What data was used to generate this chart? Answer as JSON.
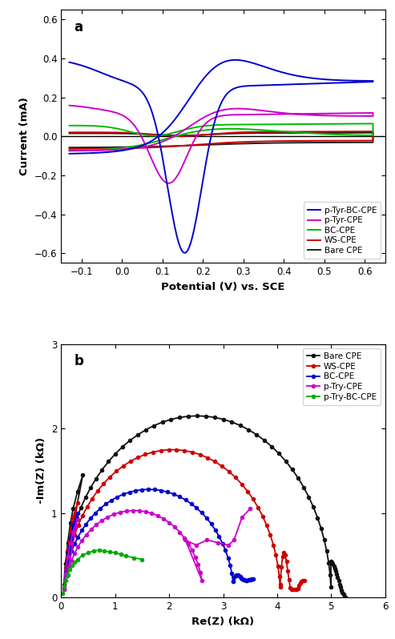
{
  "panel_a": {
    "title": "a",
    "xlabel": "Potential (V) vs. SCE",
    "ylabel": "Current (mA)",
    "xlim": [
      -0.15,
      0.65
    ],
    "ylim": [
      -0.65,
      0.65
    ],
    "xticks": [
      -0.1,
      0.0,
      0.1,
      0.2,
      0.3,
      0.4,
      0.5,
      0.6
    ],
    "yticks": [
      -0.6,
      -0.4,
      -0.2,
      0.0,
      0.2,
      0.4,
      0.6
    ],
    "curves": {
      "p-Tyr-BC-CPE": {
        "color": "#0000CC",
        "lw": 1.5
      },
      "p-Tyr-CPE": {
        "color": "#CC00CC",
        "lw": 1.5
      },
      "BC-CPE": {
        "color": "#00BB00",
        "lw": 1.5
      },
      "WS-CPE": {
        "color": "#CC0000",
        "lw": 1.5
      },
      "Bare CPE": {
        "color": "#222222",
        "lw": 1.5
      }
    }
  },
  "panel_b": {
    "title": "b",
    "xlabel": "Re(Z) (kΩ)",
    "ylabel": "-Im(Z) (kΩ)",
    "xlim": [
      0,
      6
    ],
    "ylim": [
      0,
      3
    ],
    "xticks": [
      0,
      1,
      2,
      3,
      4,
      5,
      6
    ],
    "yticks": [
      0,
      1,
      2,
      3
    ],
    "curves": {
      "Bare CPE": {
        "color": "#111111",
        "lw": 1.5,
        "ms": 4
      },
      "WS-CPE": {
        "color": "#CC0000",
        "lw": 1.5,
        "ms": 4
      },
      "BC-CPE": {
        "color": "#0000CC",
        "lw": 1.5,
        "ms": 4
      },
      "p-Try-CPE": {
        "color": "#CC00CC",
        "lw": 1.5,
        "ms": 4
      },
      "p-Try-BC-CPE": {
        "color": "#00AA00",
        "lw": 1.5,
        "ms": 4
      }
    }
  }
}
